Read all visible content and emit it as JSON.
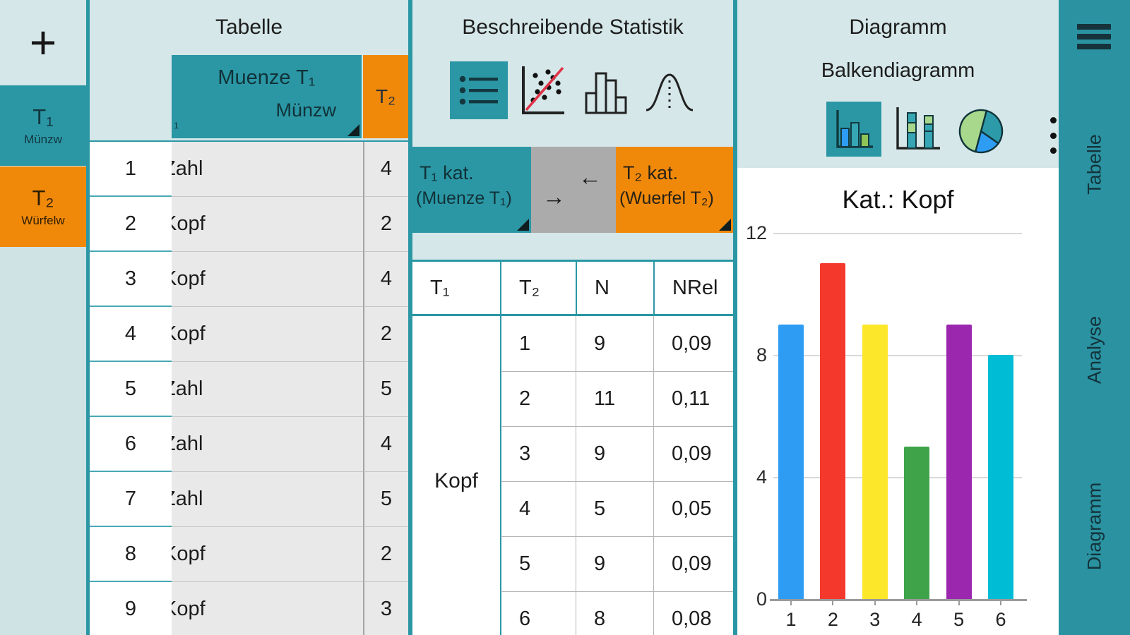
{
  "colors": {
    "teal": "#2b97a5",
    "teal_dark": "#12363e",
    "orange": "#f0890a",
    "panel_bg": "#d5e7e8",
    "rail_bg": "#cfe2e4",
    "sidebar": "#2a92a1",
    "cell_gray": "#e9e9e9"
  },
  "left_rail": {
    "add_label": "+",
    "tabs": [
      {
        "id": "T1",
        "label": "T₁",
        "sublabel": "Münzw",
        "color": "#2b97a5"
      },
      {
        "id": "T2",
        "label": "T₂",
        "sublabel": "Würfelw",
        "color": "#f0890a"
      }
    ]
  },
  "tabelle": {
    "title": "Tabelle",
    "header": {
      "clipped_label": "₁",
      "col1_line1": "Muenze T₁",
      "col1_line2": "Münzw",
      "col2": "T₂"
    },
    "rows": [
      {
        "n": "1",
        "value": "Zahl",
        "t2": "4"
      },
      {
        "n": "2",
        "value": "Kopf",
        "t2": "2"
      },
      {
        "n": "3",
        "value": "Kopf",
        "t2": "4"
      },
      {
        "n": "4",
        "value": "Kopf",
        "t2": "2"
      },
      {
        "n": "5",
        "value": "Zahl",
        "t2": "5"
      },
      {
        "n": "6",
        "value": "Zahl",
        "t2": "4"
      },
      {
        "n": "7",
        "value": "Zahl",
        "t2": "5"
      },
      {
        "n": "8",
        "value": "Kopf",
        "t2": "2"
      },
      {
        "n": "9",
        "value": "Kopf",
        "t2": "3"
      }
    ]
  },
  "statistik": {
    "title": "Beschreibende Statistik",
    "toolbar": [
      {
        "icon": "list-view-icon",
        "selected": true
      },
      {
        "icon": "scatter-plot-icon",
        "selected": false
      },
      {
        "icon": "histogram-icon",
        "selected": false
      },
      {
        "icon": "normal-distribution-icon",
        "selected": false
      }
    ],
    "kat": {
      "left": {
        "line1": "T₁ kat.",
        "line2": "(Muenze T₁)"
      },
      "swap": {
        "arrow_back": "←",
        "arrow_fwd": "→"
      },
      "right": {
        "line1": "T₂ kat.",
        "line2": "(Wuerfel T₂)"
      }
    },
    "table": {
      "headers": [
        "T₁",
        "T₂",
        "N",
        "NRel"
      ],
      "group_label": "Kopf",
      "rows": [
        [
          "1",
          "9",
          "0,09"
        ],
        [
          "2",
          "11",
          "0,11"
        ],
        [
          "3",
          "9",
          "0,09"
        ],
        [
          "4",
          "5",
          "0,05"
        ],
        [
          "5",
          "9",
          "0,09"
        ],
        [
          "6",
          "8",
          "0,08"
        ]
      ]
    }
  },
  "diagramm": {
    "title": "Diagramm",
    "subtitle": "Balkendiagramm",
    "toolbar": [
      {
        "icon": "bar-chart-icon",
        "selected": true
      },
      {
        "icon": "stacked-bar-chart-icon",
        "selected": false
      },
      {
        "icon": "pie-chart-icon",
        "selected": false
      }
    ]
  },
  "chart_data": {
    "type": "bar",
    "title": "Kat.: Kopf",
    "categories": [
      "1",
      "2",
      "3",
      "4",
      "5",
      "6"
    ],
    "values": [
      9,
      11,
      9,
      5,
      9,
      8
    ],
    "bar_colors": [
      "#2e9cf3",
      "#f4382c",
      "#fde72b",
      "#3fa34a",
      "#9b27af",
      "#00bcd4"
    ],
    "xlabel": "",
    "ylabel": "",
    "ylim": [
      0,
      12
    ],
    "yticks": [
      0,
      4,
      8,
      12
    ],
    "grid": true,
    "legend": false
  },
  "sidebar": {
    "items": [
      "Tabelle",
      "Analyse",
      "Diagramm"
    ]
  }
}
